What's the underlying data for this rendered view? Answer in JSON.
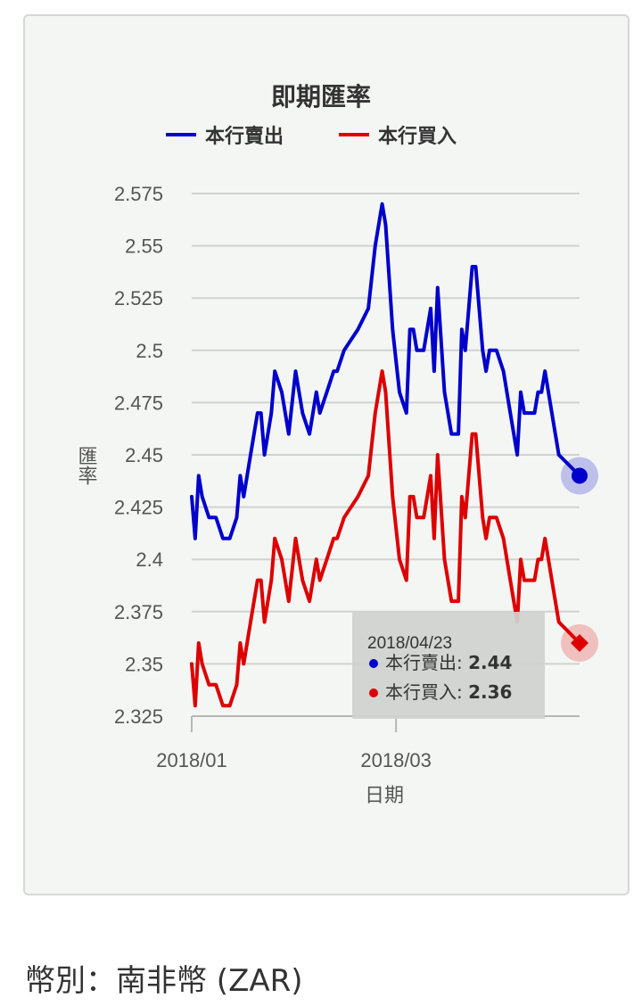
{
  "currency": {
    "label": "幣別",
    "separator": "：",
    "value": "南非幣 (ZAR)"
  },
  "colors": {
    "sell": "#0000cc",
    "buy": "#dd0000",
    "grid": "#cfd3cf",
    "card_background": "#f4f6f4",
    "tooltip_background": "#cfd2cf"
  },
  "chart_data": {
    "type": "line",
    "title": "即期匯率",
    "xlabel": "日期",
    "ylabel": "匯率",
    "ylim": [
      2.325,
      2.575
    ],
    "yticks": [
      "2.575",
      "2.55",
      "2.525",
      "2.5",
      "2.475",
      "2.45",
      "2.425",
      "2.4",
      "2.375",
      "2.35",
      "2.325"
    ],
    "xlim": [
      "2018-01-01",
      "2018-04-23"
    ],
    "xticks": [
      {
        "date": "2018-01-01",
        "label": "2018/01"
      },
      {
        "date": "2018-03-01",
        "label": "2018/03"
      }
    ],
    "grid": true,
    "legend_position": "top",
    "series": [
      {
        "name": "本行賣出",
        "color": "#0000cc",
        "points": [
          [
            "2018-01-01",
            2.43
          ],
          [
            "2018-01-02",
            2.41
          ],
          [
            "2018-01-03",
            2.44
          ],
          [
            "2018-01-04",
            2.43
          ],
          [
            "2018-01-06",
            2.42
          ],
          [
            "2018-01-08",
            2.42
          ],
          [
            "2018-01-10",
            2.41
          ],
          [
            "2018-01-12",
            2.41
          ],
          [
            "2018-01-14",
            2.42
          ],
          [
            "2018-01-15",
            2.44
          ],
          [
            "2018-01-16",
            2.43
          ],
          [
            "2018-01-18",
            2.45
          ],
          [
            "2018-01-20",
            2.47
          ],
          [
            "2018-01-21",
            2.47
          ],
          [
            "2018-01-22",
            2.45
          ],
          [
            "2018-01-24",
            2.47
          ],
          [
            "2018-01-25",
            2.49
          ],
          [
            "2018-01-27",
            2.48
          ],
          [
            "2018-01-29",
            2.46
          ],
          [
            "2018-01-31",
            2.49
          ],
          [
            "2018-02-02",
            2.47
          ],
          [
            "2018-02-04",
            2.46
          ],
          [
            "2018-02-06",
            2.48
          ],
          [
            "2018-02-07",
            2.47
          ],
          [
            "2018-02-09",
            2.48
          ],
          [
            "2018-02-11",
            2.49
          ],
          [
            "2018-02-12",
            2.49
          ],
          [
            "2018-02-14",
            2.5
          ],
          [
            "2018-02-18",
            2.51
          ],
          [
            "2018-02-21",
            2.52
          ],
          [
            "2018-02-23",
            2.55
          ],
          [
            "2018-02-25",
            2.57
          ],
          [
            "2018-02-26",
            2.56
          ],
          [
            "2018-02-28",
            2.51
          ],
          [
            "2018-03-02",
            2.48
          ],
          [
            "2018-03-04",
            2.47
          ],
          [
            "2018-03-05",
            2.51
          ],
          [
            "2018-03-06",
            2.51
          ],
          [
            "2018-03-07",
            2.5
          ],
          [
            "2018-03-09",
            2.5
          ],
          [
            "2018-03-11",
            2.52
          ],
          [
            "2018-03-12",
            2.49
          ],
          [
            "2018-03-13",
            2.53
          ],
          [
            "2018-03-15",
            2.48
          ],
          [
            "2018-03-17",
            2.46
          ],
          [
            "2018-03-19",
            2.46
          ],
          [
            "2018-03-20",
            2.51
          ],
          [
            "2018-03-21",
            2.5
          ],
          [
            "2018-03-23",
            2.54
          ],
          [
            "2018-03-24",
            2.54
          ],
          [
            "2018-03-26",
            2.5
          ],
          [
            "2018-03-27",
            2.49
          ],
          [
            "2018-03-28",
            2.5
          ],
          [
            "2018-03-30",
            2.5
          ],
          [
            "2018-04-01",
            2.49
          ],
          [
            "2018-04-03",
            2.47
          ],
          [
            "2018-04-05",
            2.45
          ],
          [
            "2018-04-06",
            2.48
          ],
          [
            "2018-04-07",
            2.47
          ],
          [
            "2018-04-10",
            2.47
          ],
          [
            "2018-04-11",
            2.48
          ],
          [
            "2018-04-12",
            2.48
          ],
          [
            "2018-04-13",
            2.49
          ],
          [
            "2018-04-15",
            2.47
          ],
          [
            "2018-04-17",
            2.45
          ],
          [
            "2018-04-23",
            2.44
          ]
        ]
      },
      {
        "name": "本行買入",
        "color": "#dd0000",
        "points": [
          [
            "2018-01-01",
            2.35
          ],
          [
            "2018-01-02",
            2.33
          ],
          [
            "2018-01-03",
            2.36
          ],
          [
            "2018-01-04",
            2.35
          ],
          [
            "2018-01-06",
            2.34
          ],
          [
            "2018-01-08",
            2.34
          ],
          [
            "2018-01-10",
            2.33
          ],
          [
            "2018-01-12",
            2.33
          ],
          [
            "2018-01-14",
            2.34
          ],
          [
            "2018-01-15",
            2.36
          ],
          [
            "2018-01-16",
            2.35
          ],
          [
            "2018-01-18",
            2.37
          ],
          [
            "2018-01-20",
            2.39
          ],
          [
            "2018-01-21",
            2.39
          ],
          [
            "2018-01-22",
            2.37
          ],
          [
            "2018-01-24",
            2.39
          ],
          [
            "2018-01-25",
            2.41
          ],
          [
            "2018-01-27",
            2.4
          ],
          [
            "2018-01-29",
            2.38
          ],
          [
            "2018-01-31",
            2.41
          ],
          [
            "2018-02-02",
            2.39
          ],
          [
            "2018-02-04",
            2.38
          ],
          [
            "2018-02-06",
            2.4
          ],
          [
            "2018-02-07",
            2.39
          ],
          [
            "2018-02-09",
            2.4
          ],
          [
            "2018-02-11",
            2.41
          ],
          [
            "2018-02-12",
            2.41
          ],
          [
            "2018-02-14",
            2.42
          ],
          [
            "2018-02-18",
            2.43
          ],
          [
            "2018-02-21",
            2.44
          ],
          [
            "2018-02-23",
            2.47
          ],
          [
            "2018-02-25",
            2.49
          ],
          [
            "2018-02-26",
            2.48
          ],
          [
            "2018-02-28",
            2.43
          ],
          [
            "2018-03-02",
            2.4
          ],
          [
            "2018-03-04",
            2.39
          ],
          [
            "2018-03-05",
            2.43
          ],
          [
            "2018-03-06",
            2.43
          ],
          [
            "2018-03-07",
            2.42
          ],
          [
            "2018-03-09",
            2.42
          ],
          [
            "2018-03-11",
            2.44
          ],
          [
            "2018-03-12",
            2.41
          ],
          [
            "2018-03-13",
            2.45
          ],
          [
            "2018-03-15",
            2.4
          ],
          [
            "2018-03-17",
            2.38
          ],
          [
            "2018-03-19",
            2.38
          ],
          [
            "2018-03-20",
            2.43
          ],
          [
            "2018-03-21",
            2.42
          ],
          [
            "2018-03-23",
            2.46
          ],
          [
            "2018-03-24",
            2.46
          ],
          [
            "2018-03-26",
            2.42
          ],
          [
            "2018-03-27",
            2.41
          ],
          [
            "2018-03-28",
            2.42
          ],
          [
            "2018-03-30",
            2.42
          ],
          [
            "2018-04-01",
            2.41
          ],
          [
            "2018-04-03",
            2.39
          ],
          [
            "2018-04-05",
            2.37
          ],
          [
            "2018-04-06",
            2.4
          ],
          [
            "2018-04-07",
            2.39
          ],
          [
            "2018-04-10",
            2.39
          ],
          [
            "2018-04-11",
            2.4
          ],
          [
            "2018-04-12",
            2.4
          ],
          [
            "2018-04-13",
            2.41
          ],
          [
            "2018-04-15",
            2.39
          ],
          [
            "2018-04-17",
            2.37
          ],
          [
            "2018-04-23",
            2.36
          ]
        ]
      }
    ],
    "tooltip": {
      "date": "2018/04/23",
      "rows": [
        {
          "name": "本行賣出",
          "suffix": ": ",
          "value": "2.44",
          "color": "#0000cc"
        },
        {
          "name": "本行買入",
          "suffix": ": ",
          "value": "2.36",
          "color": "#dd0000"
        }
      ]
    }
  }
}
